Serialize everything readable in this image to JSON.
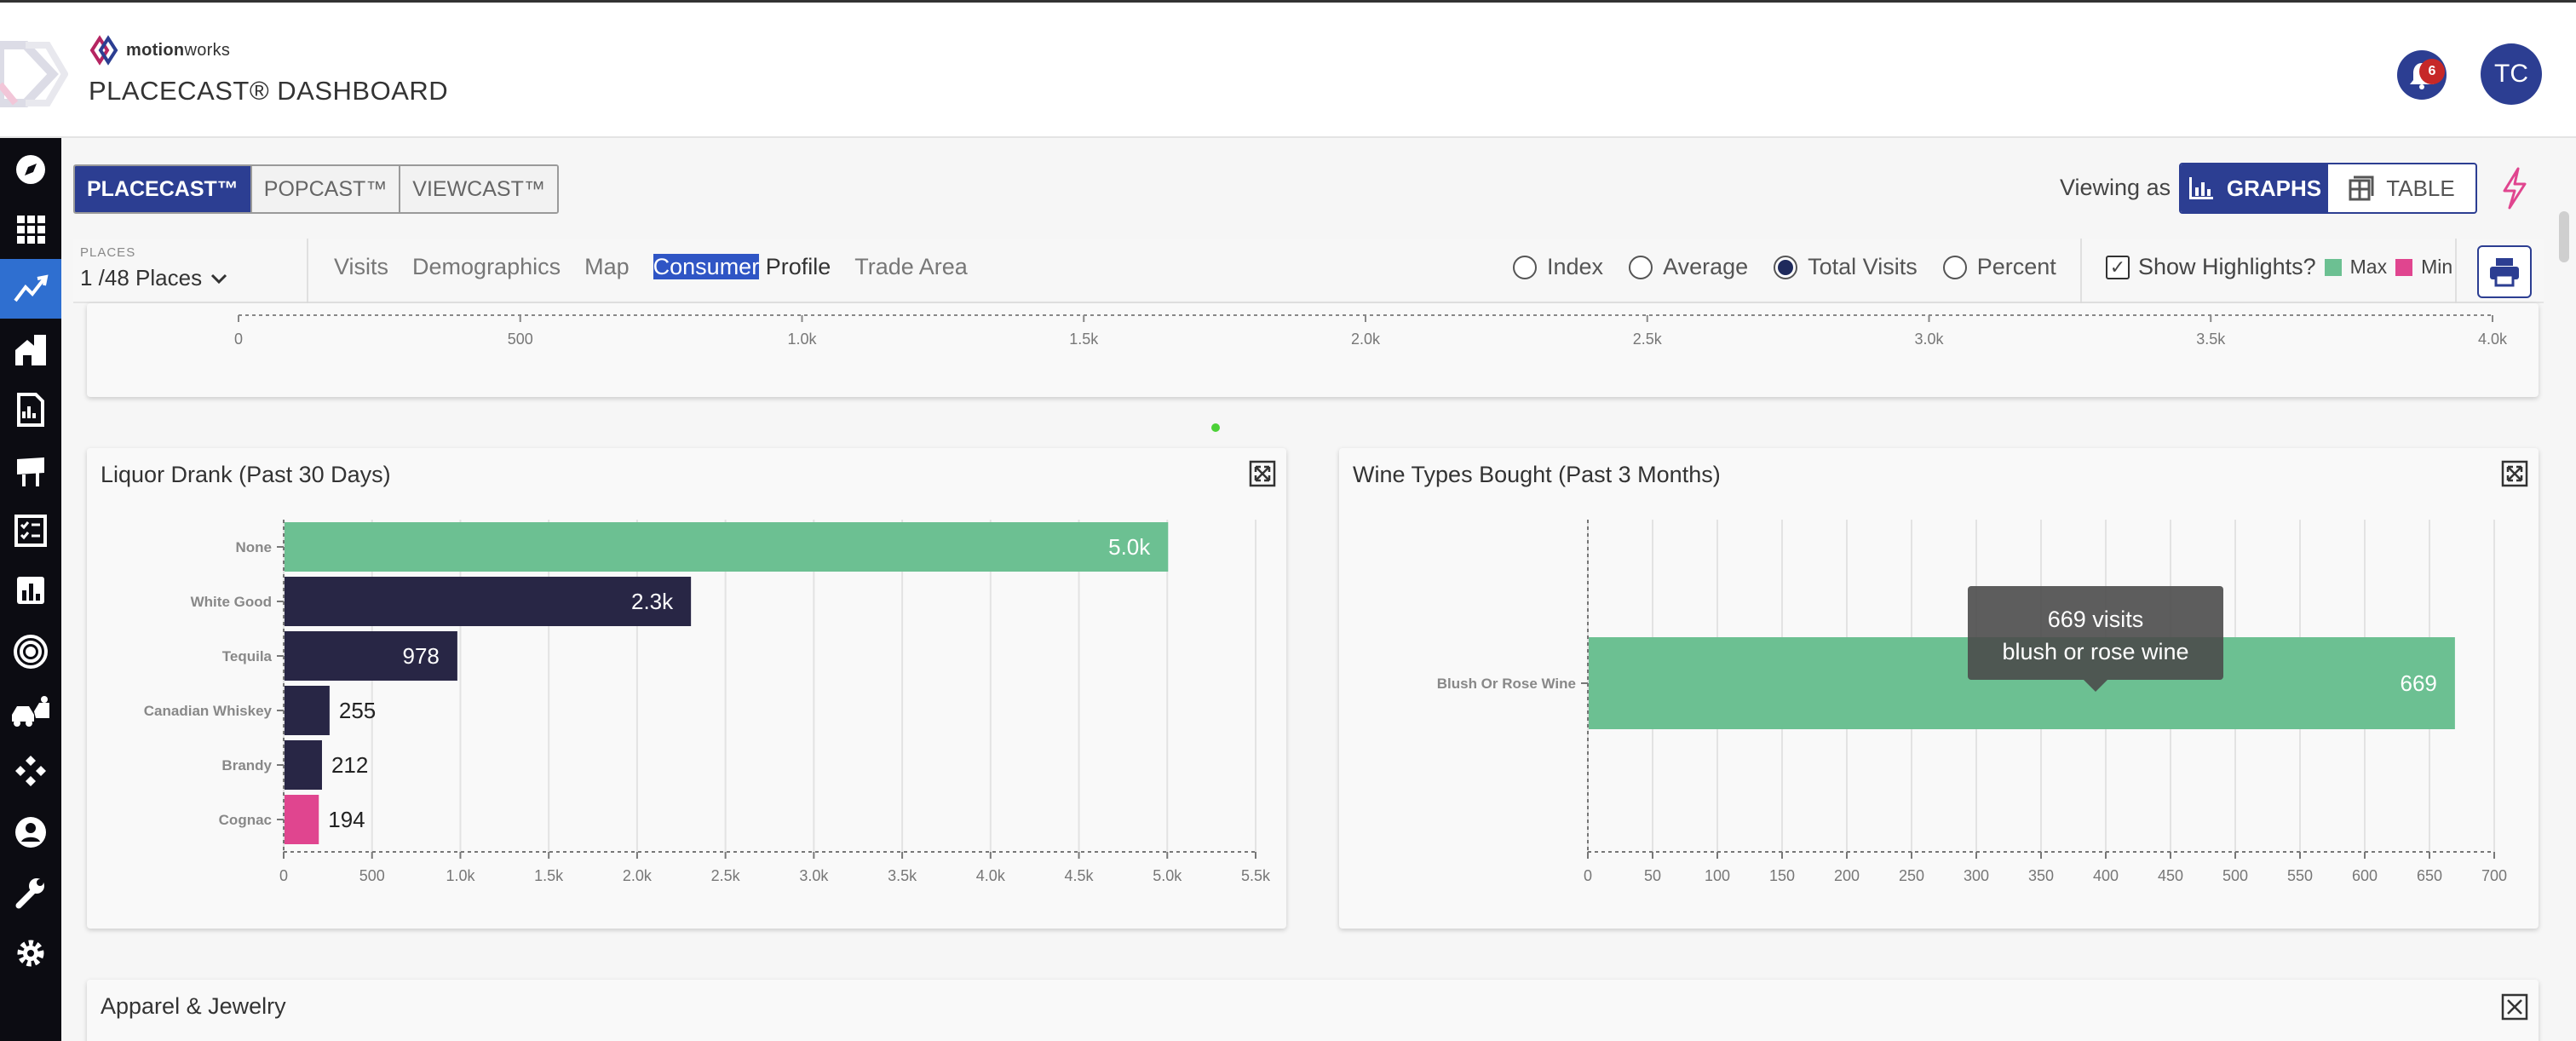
{
  "header": {
    "brand_bold": "motion",
    "brand_light": "works",
    "title": "PLACECAST® DASHBOARD",
    "notification_count": "6",
    "avatar_initials": "TC"
  },
  "sidebar": {
    "items": [
      {
        "icon": "compass-icon",
        "active": false
      },
      {
        "icon": "grid-icon",
        "active": false
      },
      {
        "icon": "trend-chart-icon",
        "active": true
      },
      {
        "icon": "buildings-icon",
        "active": false
      },
      {
        "icon": "report-icon",
        "active": false
      },
      {
        "icon": "billboard-icon",
        "active": false
      },
      {
        "icon": "checklist-icon",
        "active": false
      },
      {
        "icon": "bar-chart-icon",
        "active": false
      },
      {
        "icon": "target-icon",
        "active": false
      },
      {
        "icon": "vehicles-icon",
        "active": false
      },
      {
        "icon": "network-icon",
        "active": false
      },
      {
        "icon": "user-icon",
        "active": false
      },
      {
        "icon": "wrench-icon",
        "active": false
      },
      {
        "icon": "gear-icon",
        "active": false
      }
    ]
  },
  "product_tabs": [
    "PLACECAST™",
    "POPCAST™",
    "VIEWCAST™"
  ],
  "view": {
    "label": "Viewing as",
    "graphs": "GRAPHS",
    "table": "TABLE"
  },
  "subnav": {
    "places_label": "PLACES",
    "places_value": "1 /48 Places",
    "tabs": [
      "Visits",
      "Demographics",
      "Map",
      "Consumer",
      "Profile",
      "Trade Area"
    ],
    "radios": [
      "Index",
      "Average",
      "Total Visits",
      "Percent"
    ],
    "selected_radio": "Total Visits",
    "highlights_label": "Show Highlights?",
    "max_label": "Max",
    "min_label": "Min"
  },
  "colors": {
    "primary": "#2c3e92",
    "max": "#6cc092",
    "min": "#e0458f",
    "bar": "#282645"
  },
  "top_axis": {
    "ticks": [
      "0",
      "500",
      "1.0k",
      "1.5k",
      "2.0k",
      "2.5k",
      "3.0k",
      "3.5k",
      "4.0k"
    ]
  },
  "panels": {
    "liquor_title": "Liquor Drank (Past 30 Days)",
    "wine_title": "Wine Types Bought (Past 3 Months)",
    "apparel_title": "Apparel & Jewelry"
  },
  "tooltip": {
    "line1": "669 visits",
    "line2": "blush or rose wine"
  },
  "chart_data": [
    {
      "type": "bar",
      "orientation": "horizontal",
      "title": "Liquor Drank (Past 30 Days)",
      "categories": [
        "None",
        "White Good",
        "Tequila",
        "Canadian Whiskey",
        "Brandy",
        "Cognac"
      ],
      "values": [
        5000,
        2300,
        978,
        255,
        212,
        194
      ],
      "data_labels": [
        "5.0k",
        "2.3k",
        "978",
        "255",
        "212",
        "194"
      ],
      "highlight": [
        "max",
        "none",
        "none",
        "none",
        "none",
        "min"
      ],
      "xlim": [
        0,
        5500
      ],
      "x_ticks": [
        "0",
        "500",
        "1.0k",
        "1.5k",
        "2.0k",
        "2.5k",
        "3.0k",
        "3.5k",
        "4.0k",
        "4.5k",
        "5.0k",
        "5.5k"
      ],
      "grid": true
    },
    {
      "type": "bar",
      "orientation": "horizontal",
      "title": "Wine Types Bought (Past 3 Months)",
      "categories": [
        "Blush Or Rose Wine"
      ],
      "values": [
        669
      ],
      "data_labels": [
        "669"
      ],
      "highlight": [
        "max"
      ],
      "xlim": [
        0,
        700
      ],
      "x_ticks": [
        "0",
        "50",
        "100",
        "150",
        "200",
        "250",
        "300",
        "350",
        "400",
        "450",
        "500",
        "550",
        "600",
        "650",
        "700"
      ],
      "grid": true
    }
  ]
}
